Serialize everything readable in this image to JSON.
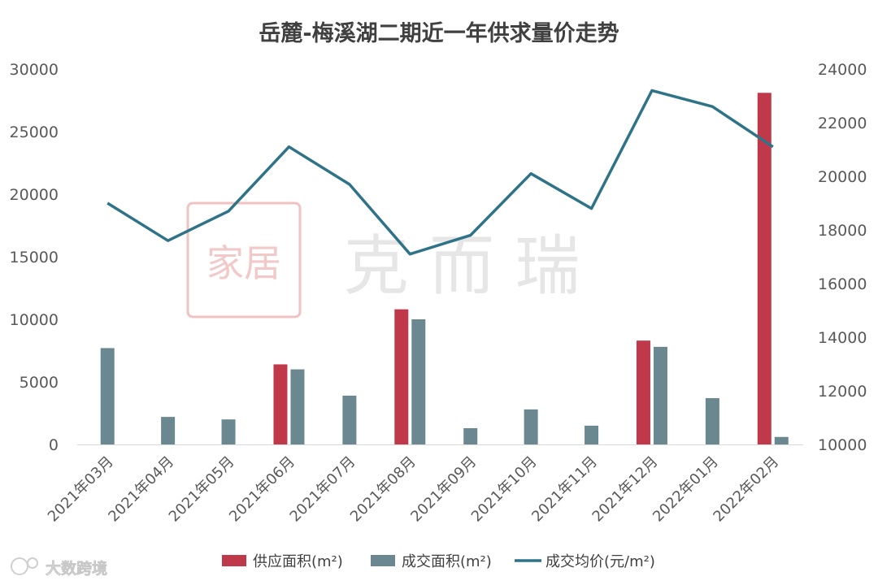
{
  "chart_data": {
    "type": "bar+line",
    "title": "岳麓-梅溪湖二期近一年供求量价走势",
    "categories": [
      "2021年03月",
      "2021年04月",
      "2021年05月",
      "2021年06月",
      "2021年07月",
      "2021年08月",
      "2021年09月",
      "2021年10月",
      "2021年11月",
      "2021年12月",
      "2022年01月",
      "2022年02月"
    ],
    "series": [
      {
        "name": "供应面积(m²)",
        "type": "bar",
        "axis": "left",
        "color": "#c0394b",
        "values": [
          0,
          0,
          0,
          6400,
          0,
          10800,
          0,
          0,
          0,
          8300,
          0,
          28100
        ]
      },
      {
        "name": "成交面积(m²)",
        "type": "bar",
        "axis": "left",
        "color": "#6b8891",
        "values": [
          7700,
          2200,
          2000,
          6000,
          3900,
          10000,
          1300,
          2800,
          1500,
          7800,
          3700,
          600
        ]
      },
      {
        "name": "成交均价(元/m²)",
        "type": "line",
        "axis": "right",
        "color": "#2f7389",
        "values": [
          19000,
          17600,
          18700,
          21100,
          19700,
          17100,
          17800,
          20100,
          18800,
          23200,
          22600,
          21100
        ]
      }
    ],
    "y_left": {
      "min": 0,
      "max": 30000,
      "ticks": [
        "0",
        "5000",
        "10000",
        "15000",
        "20000",
        "25000",
        "30000"
      ]
    },
    "y_right": {
      "min": 10000,
      "max": 24000,
      "ticks": [
        "10000",
        "12000",
        "14000",
        "16000",
        "18000",
        "20000",
        "22000",
        "24000"
      ]
    },
    "legend_position": "bottom",
    "grid": false
  },
  "watermark": {
    "seal_text": "家居",
    "text": "克 而 瑞",
    "seal_color": "#e8a5a5"
  },
  "brand": {
    "text": "大数跨境"
  }
}
